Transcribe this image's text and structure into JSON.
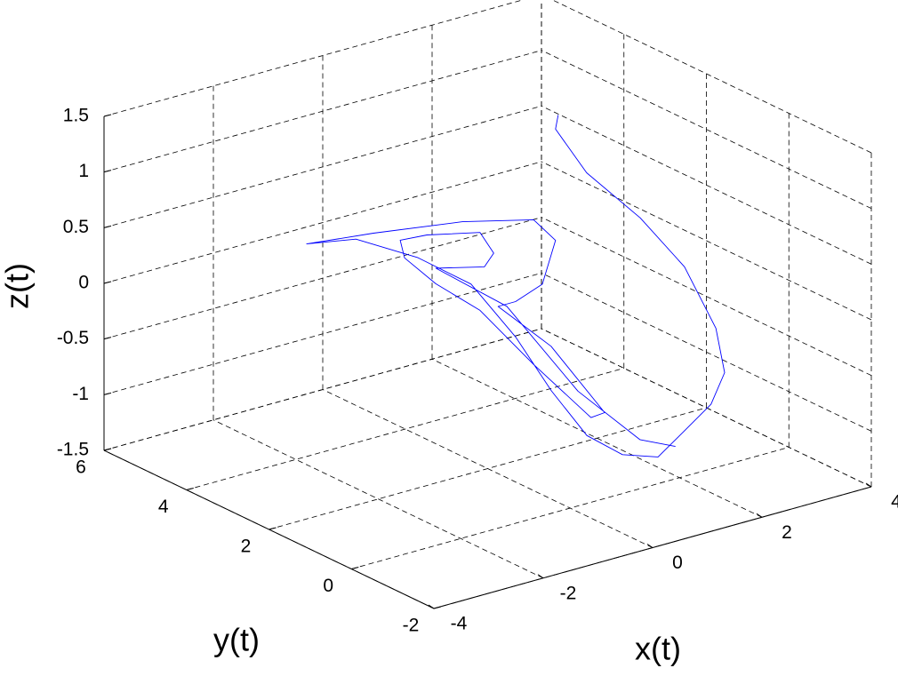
{
  "chart_data": {
    "type": "line3d",
    "xlabel": "x(t)",
    "ylabel": "y(t)",
    "zlabel": "z(t)",
    "xlim": [
      -4,
      4
    ],
    "ylim": [
      -2,
      6
    ],
    "zlim": [
      -1.5,
      1.5
    ],
    "xticks": [
      -4,
      -2,
      0,
      2,
      4
    ],
    "yticks": [
      -2,
      0,
      2,
      4,
      6
    ],
    "zticks": [
      -1.5,
      -1,
      -0.5,
      0,
      0.5,
      1,
      1.5
    ],
    "grid": true,
    "series": [
      {
        "color": "#0000ff",
        "x": [
          1.29,
          1.24,
          1.81,
          2.79,
          3.6,
          3.42,
          3.58,
          3.33,
          2.85,
          1.23,
          0.58,
          -0.07,
          -0.72,
          -1.37,
          -2.19,
          -3.16,
          -2.41,
          -3.31,
          -2.09,
          -0.46,
          0.84,
          1.24,
          1.0,
          0.51,
          0.19,
          1.16,
          2.14,
          1.89,
          0.84,
          -0.14,
          -0.95,
          -1.52,
          -1.6,
          -1.11,
          -0.14,
          0.11,
          -0.06,
          -0.95,
          0.35,
          1.65,
          2.03,
          2.68
        ],
        "y": [
          2,
          2,
          2,
          2,
          2,
          1,
          1,
          1,
          1,
          -0.5,
          -0.5,
          -0.5,
          -0.5,
          -0.5,
          -0.5,
          -0.5,
          2,
          2,
          2,
          2,
          2,
          2,
          2,
          2,
          2,
          2,
          2,
          2,
          2,
          2,
          2,
          2,
          2,
          2,
          2,
          2,
          2,
          2,
          2,
          2,
          1,
          1
        ],
        "z": [
          1.5,
          1.38,
          0.91,
          0.37,
          -0.18,
          -0.53,
          -0.95,
          -1.2,
          -1.37,
          -1.12,
          -1.01,
          -0.75,
          -0.26,
          0.31,
          0.9,
          1.27,
          0.89,
          0.97,
          0.9,
          0.78,
          0.62,
          0.38,
          0.02,
          -0.07,
          -0.07,
          -0.56,
          -1.29,
          -1.3,
          -0.68,
          -0.06,
          0.29,
          0.6,
          0.77,
          0.75,
          0.64,
          0.42,
          0.32,
          0.43,
          -0.09,
          -1.03,
          -1.34,
          -1.49
        ]
      }
    ]
  }
}
